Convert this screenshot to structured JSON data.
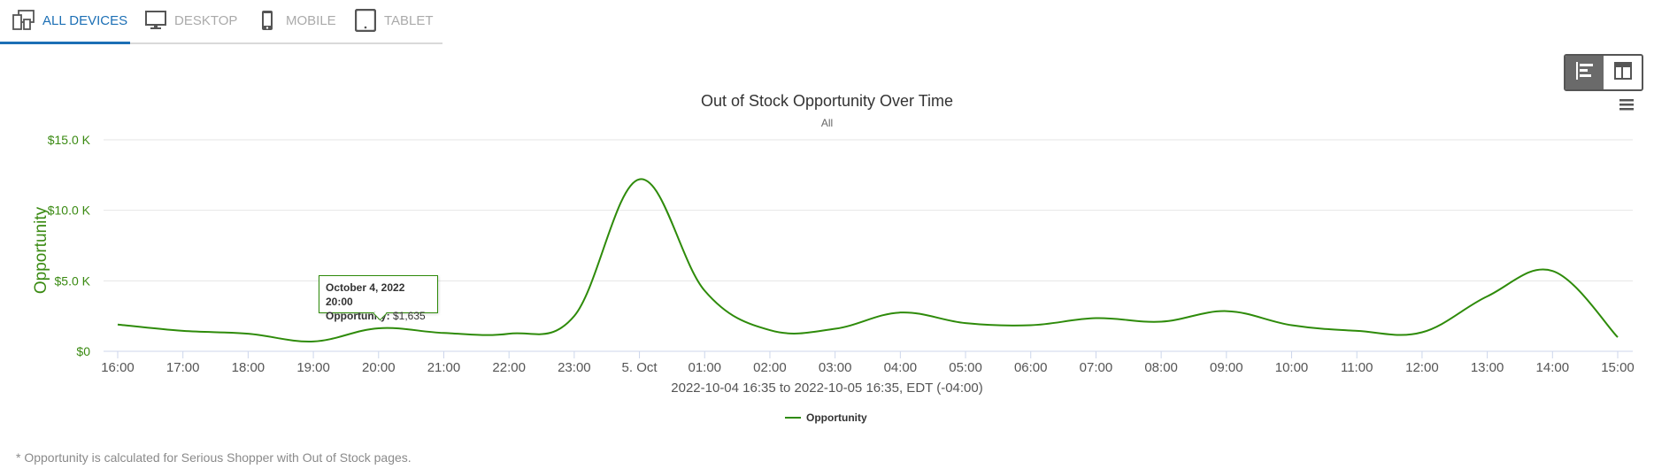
{
  "tabs": [
    {
      "label": "ALL DEVICES",
      "icon": "all-devices-icon",
      "active": true
    },
    {
      "label": "DESKTOP",
      "icon": "desktop-icon",
      "active": false
    },
    {
      "label": "MOBILE",
      "icon": "mobile-icon",
      "active": false
    },
    {
      "label": "TABLET",
      "icon": "tablet-icon",
      "active": false
    }
  ],
  "colors": {
    "accent": "#1c6fb5",
    "series": "#2e8b0a",
    "axis_text": "#3a8a12"
  },
  "chart_data": {
    "type": "line",
    "title": "Out of Stock Opportunity Over Time",
    "subtitle": "All",
    "ylabel": "Opportunity",
    "xlabel": "2022-10-04 16:35 to 2022-10-05 16:35, EDT (-04:00)",
    "ylim": [
      0,
      15000
    ],
    "yticks": [
      0,
      5000,
      10000,
      15000
    ],
    "ytick_labels": [
      "$0",
      "$5.0 K",
      "$10.0 K",
      "$15.0 K"
    ],
    "x_tick_labels": [
      "16:00",
      "17:00",
      "18:00",
      "19:00",
      "20:00",
      "21:00",
      "22:00",
      "23:00",
      "5. Oct",
      "01:00",
      "02:00",
      "03:00",
      "04:00",
      "05:00",
      "06:00",
      "07:00",
      "08:00",
      "09:00",
      "10:00",
      "11:00",
      "12:00",
      "13:00",
      "14:00",
      "15:00"
    ],
    "grid": true,
    "legend_position": "bottom-center",
    "series": [
      {
        "name": "Opportunity",
        "x": [
          "2022-10-04 16:00",
          "2022-10-04 17:00",
          "2022-10-04 18:00",
          "2022-10-04 19:00",
          "2022-10-04 20:00",
          "2022-10-04 21:00",
          "2022-10-04 22:00",
          "2022-10-04 23:00",
          "2022-10-05 00:00",
          "2022-10-05 01:00",
          "2022-10-05 02:00",
          "2022-10-05 03:00",
          "2022-10-05 04:00",
          "2022-10-05 05:00",
          "2022-10-05 06:00",
          "2022-10-05 07:00",
          "2022-10-05 08:00",
          "2022-10-05 09:00",
          "2022-10-05 10:00",
          "2022-10-05 11:00",
          "2022-10-05 12:00",
          "2022-10-05 13:00",
          "2022-10-05 14:00",
          "2022-10-05 15:00"
        ],
        "values": [
          1900,
          1450,
          1250,
          700,
          1635,
          1300,
          1250,
          2500,
          12200,
          4300,
          1500,
          1600,
          2750,
          2000,
          1850,
          2350,
          2100,
          2850,
          1850,
          1450,
          1350,
          3900,
          5700,
          1000
        ]
      }
    ]
  },
  "tooltip": {
    "title": "October 4, 2022 20:00",
    "label": "Opportunity:",
    "value": "$1,635"
  },
  "footnote": "* Opportunity is calculated for Serious Shopper with Out of Stock pages."
}
